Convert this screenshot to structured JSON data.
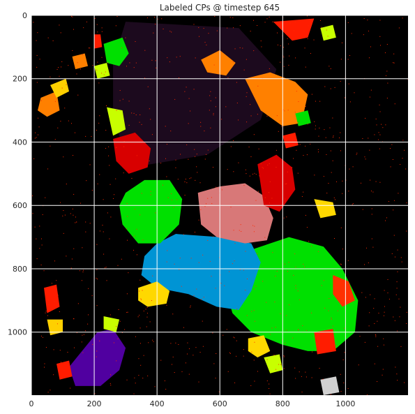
{
  "chart_data": {
    "type": "heatmap",
    "title": "Labeled CPs @ timestep 645",
    "xlabel": "",
    "ylabel": "",
    "xlim": [
      0,
      1199
    ],
    "ylim": [
      1199,
      0
    ],
    "grid": true,
    "x_ticks": [
      0,
      200,
      400,
      600,
      800,
      1000
    ],
    "y_ticks": [
      0,
      200,
      400,
      600,
      800,
      1000
    ],
    "background_color": "#000000",
    "interior_color": "#1c0a1e",
    "noise_color": "#ff2a00",
    "interior_region": [
      [
        300,
        20
      ],
      [
        660,
        40
      ],
      [
        780,
        170
      ],
      [
        730,
        330
      ],
      [
        560,
        440
      ],
      [
        320,
        480
      ],
      [
        260,
        330
      ],
      [
        260,
        150
      ]
    ],
    "regions": [
      {
        "color": "#00e000",
        "points": [
          [
            700,
            740
          ],
          [
            820,
            700
          ],
          [
            930,
            730
          ],
          [
            990,
            800
          ],
          [
            1040,
            900
          ],
          [
            1030,
            1000
          ],
          [
            960,
            1060
          ],
          [
            880,
            1060
          ],
          [
            800,
            1040
          ],
          [
            700,
            1000
          ],
          [
            640,
            940
          ],
          [
            620,
            870
          ],
          [
            660,
            790
          ]
        ]
      },
      {
        "color": "#0094d4",
        "points": [
          [
            400,
            720
          ],
          [
            460,
            690
          ],
          [
            600,
            700
          ],
          [
            700,
            720
          ],
          [
            730,
            780
          ],
          [
            700,
            870
          ],
          [
            660,
            930
          ],
          [
            590,
            920
          ],
          [
            500,
            880
          ],
          [
            400,
            860
          ],
          [
            350,
            820
          ],
          [
            360,
            760
          ]
        ]
      },
      {
        "color": "#d87878",
        "points": [
          [
            530,
            560
          ],
          [
            600,
            540
          ],
          [
            680,
            530
          ],
          [
            740,
            570
          ],
          [
            770,
            640
          ],
          [
            750,
            710
          ],
          [
            680,
            720
          ],
          [
            590,
            700
          ],
          [
            540,
            660
          ]
        ]
      },
      {
        "color": "#d80000",
        "points": [
          [
            720,
            470
          ],
          [
            780,
            440
          ],
          [
            830,
            480
          ],
          [
            840,
            550
          ],
          [
            790,
            620
          ],
          [
            740,
            600
          ]
        ]
      },
      {
        "color": "#00e000",
        "points": [
          [
            300,
            560
          ],
          [
            360,
            520
          ],
          [
            440,
            520
          ],
          [
            480,
            580
          ],
          [
            470,
            660
          ],
          [
            410,
            720
          ],
          [
            340,
            720
          ],
          [
            290,
            660
          ],
          [
            280,
            600
          ]
        ]
      },
      {
        "color": "#5000a0",
        "points": [
          [
            120,
            1110
          ],
          [
            210,
            1000
          ],
          [
            260,
            990
          ],
          [
            300,
            1050
          ],
          [
            280,
            1120
          ],
          [
            220,
            1170
          ],
          [
            140,
            1170
          ]
        ]
      },
      {
        "color": "#ff8000",
        "points": [
          [
            680,
            200
          ],
          [
            760,
            180
          ],
          [
            840,
            210
          ],
          [
            880,
            250
          ],
          [
            860,
            340
          ],
          [
            800,
            350
          ],
          [
            730,
            300
          ]
        ]
      },
      {
        "color": "#ff8000",
        "points": [
          [
            540,
            140
          ],
          [
            600,
            110
          ],
          [
            650,
            150
          ],
          [
            620,
            190
          ],
          [
            560,
            180
          ]
        ]
      },
      {
        "color": "#ffd800",
        "points": [
          [
            340,
            860
          ],
          [
            400,
            840
          ],
          [
            440,
            870
          ],
          [
            430,
            910
          ],
          [
            370,
            920
          ],
          [
            340,
            900
          ]
        ]
      },
      {
        "color": "#00e000",
        "points": [
          [
            230,
            90
          ],
          [
            290,
            70
          ],
          [
            310,
            120
          ],
          [
            280,
            160
          ],
          [
            240,
            150
          ]
        ]
      },
      {
        "color": "#c8ff00",
        "points": [
          [
            200,
            160
          ],
          [
            240,
            150
          ],
          [
            250,
            190
          ],
          [
            210,
            200
          ]
        ]
      },
      {
        "color": "#ff8000",
        "points": [
          [
            30,
            260
          ],
          [
            80,
            240
          ],
          [
            90,
            300
          ],
          [
            50,
            320
          ],
          [
            20,
            300
          ]
        ]
      },
      {
        "color": "#ffd000",
        "points": [
          [
            60,
            220
          ],
          [
            110,
            200
          ],
          [
            120,
            240
          ],
          [
            80,
            260
          ]
        ]
      },
      {
        "color": "#c8ff00",
        "points": [
          [
            240,
            290
          ],
          [
            290,
            300
          ],
          [
            300,
            360
          ],
          [
            260,
            380
          ]
        ]
      },
      {
        "color": "#d80000",
        "points": [
          [
            260,
            390
          ],
          [
            330,
            370
          ],
          [
            380,
            420
          ],
          [
            370,
            480
          ],
          [
            310,
            500
          ],
          [
            270,
            460
          ]
        ]
      },
      {
        "color": "#ff1c00",
        "points": [
          [
            770,
            20
          ],
          [
            900,
            10
          ],
          [
            880,
            70
          ],
          [
            830,
            80
          ]
        ]
      },
      {
        "color": "#c8ff00",
        "points": [
          [
            920,
            40
          ],
          [
            960,
            30
          ],
          [
            970,
            70
          ],
          [
            930,
            80
          ]
        ]
      },
      {
        "color": "#ffd800",
        "points": [
          [
            900,
            580
          ],
          [
            960,
            590
          ],
          [
            970,
            630
          ],
          [
            920,
            640
          ]
        ]
      },
      {
        "color": "#ff3000",
        "points": [
          [
            960,
            820
          ],
          [
            1010,
            840
          ],
          [
            1030,
            900
          ],
          [
            990,
            920
          ],
          [
            960,
            880
          ]
        ]
      },
      {
        "color": "#ffd000",
        "points": [
          [
            50,
            960
          ],
          [
            100,
            960
          ],
          [
            100,
            1000
          ],
          [
            60,
            1010
          ]
        ]
      },
      {
        "color": "#c8ff00",
        "points": [
          [
            230,
            950
          ],
          [
            280,
            960
          ],
          [
            270,
            1000
          ],
          [
            230,
            990
          ]
        ]
      },
      {
        "color": "#ffd800",
        "points": [
          [
            690,
            1020
          ],
          [
            740,
            1010
          ],
          [
            760,
            1060
          ],
          [
            720,
            1080
          ],
          [
            690,
            1060
          ]
        ]
      },
      {
        "color": "#c8ff00",
        "points": [
          [
            740,
            1080
          ],
          [
            790,
            1070
          ],
          [
            800,
            1120
          ],
          [
            760,
            1130
          ]
        ]
      },
      {
        "color": "#d0d0d0",
        "points": [
          [
            920,
            1150
          ],
          [
            970,
            1140
          ],
          [
            980,
            1190
          ],
          [
            930,
            1199
          ]
        ]
      },
      {
        "color": "#ff1c00",
        "points": [
          [
            80,
            1100
          ],
          [
            120,
            1090
          ],
          [
            130,
            1140
          ],
          [
            90,
            1150
          ]
        ]
      },
      {
        "color": "#ff1c00",
        "points": [
          [
            200,
            60
          ],
          [
            220,
            60
          ],
          [
            225,
            100
          ],
          [
            200,
            105
          ]
        ]
      },
      {
        "color": "#ff8000",
        "points": [
          [
            130,
            130
          ],
          [
            170,
            120
          ],
          [
            180,
            160
          ],
          [
            140,
            170
          ]
        ]
      },
      {
        "color": "#ff1c00",
        "points": [
          [
            40,
            860
          ],
          [
            80,
            850
          ],
          [
            90,
            920
          ],
          [
            50,
            940
          ]
        ]
      },
      {
        "color": "#ff1c00",
        "points": [
          [
            900,
            1000
          ],
          [
            960,
            990
          ],
          [
            970,
            1060
          ],
          [
            910,
            1070
          ]
        ]
      },
      {
        "color": "#ff1c00",
        "points": [
          [
            800,
            380
          ],
          [
            840,
            370
          ],
          [
            850,
            410
          ],
          [
            810,
            420
          ]
        ]
      },
      {
        "color": "#00e000",
        "points": [
          [
            840,
            310
          ],
          [
            880,
            300
          ],
          [
            890,
            340
          ],
          [
            850,
            350
          ]
        ]
      }
    ]
  }
}
